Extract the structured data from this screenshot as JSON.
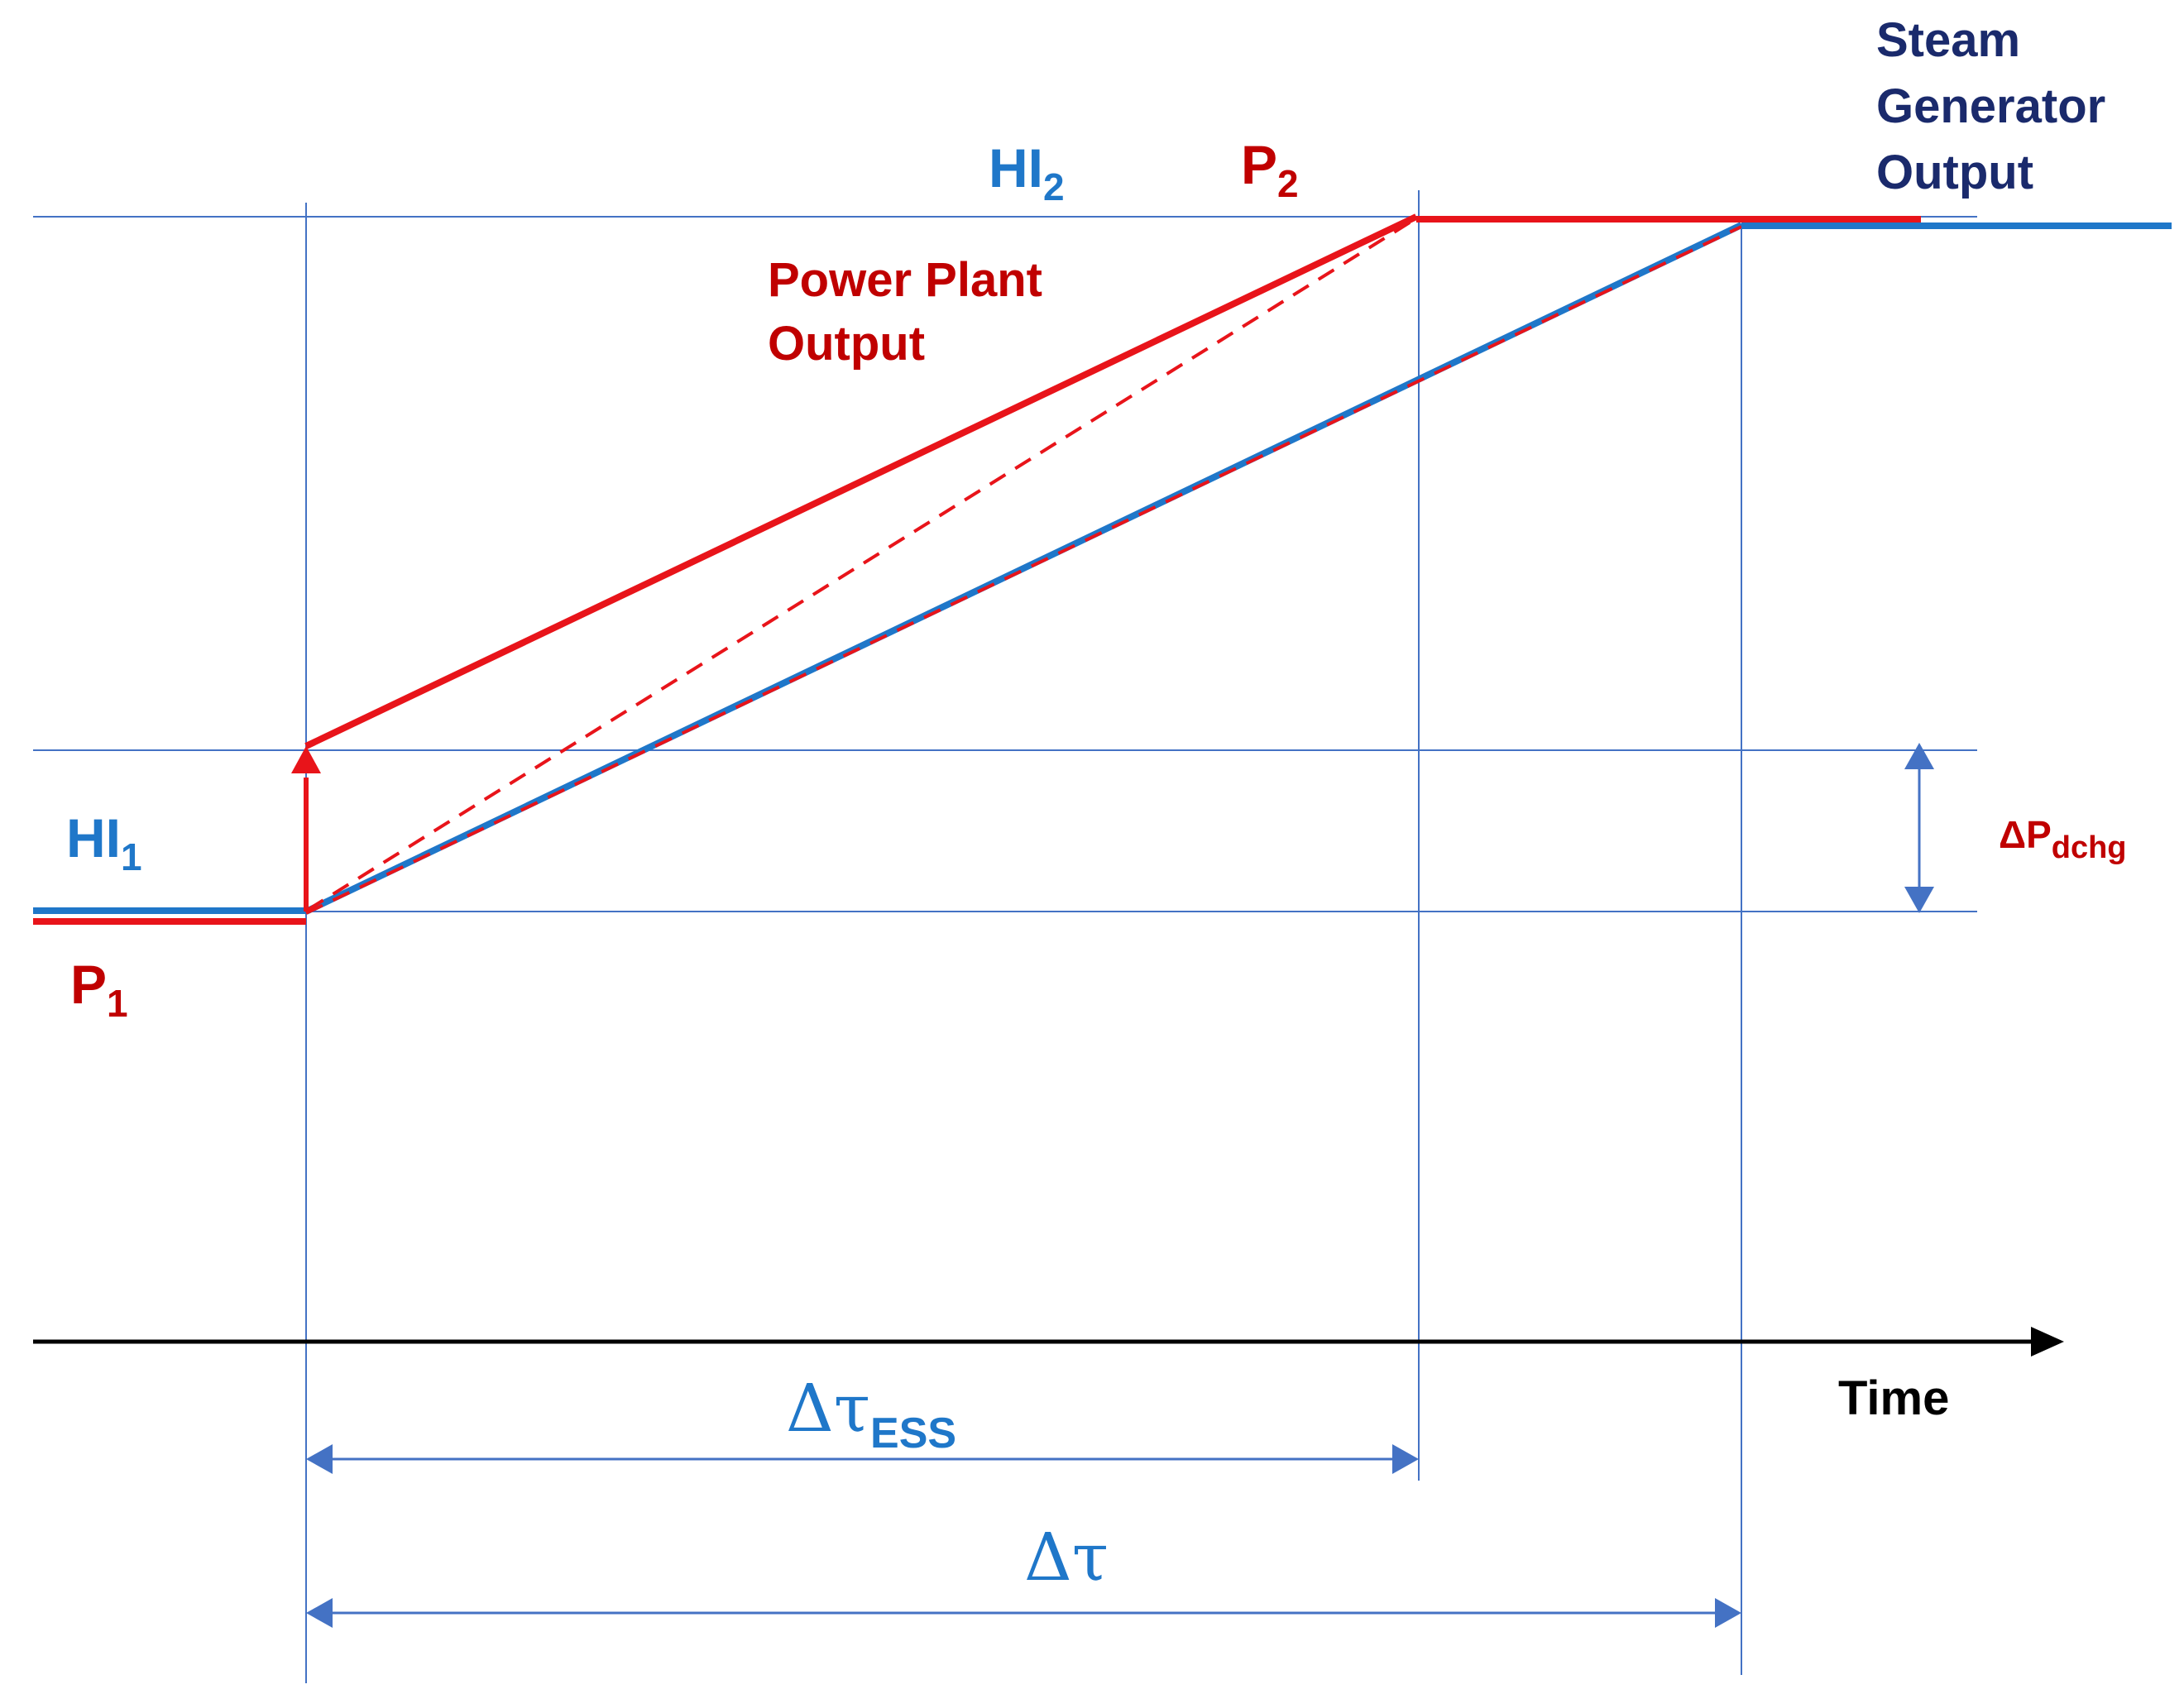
{
  "colors": {
    "hi_blue": "#1f77c9",
    "p_red": "#e8141a",
    "label_red": "#c00000",
    "guide_blue": "#4472c4",
    "dim_blue": "#4472c4",
    "steam_navy": "#1a2a6c",
    "axis_black": "#000000"
  },
  "labels": {
    "hi1_main": "HI",
    "hi1_sub": "1",
    "hi2_main": "HI",
    "hi2_sub": "2",
    "p1_main": "P",
    "p1_sub": "1",
    "p2_main": "P",
    "p2_sub": "2",
    "power_plant_line1": "Power Plant",
    "power_plant_line2": "Output",
    "steam_line1": "Steam",
    "steam_line2": "Generator",
    "steam_line3": "Output",
    "delta_p_main": "ΔP",
    "delta_p_sub": "dchg",
    "time": "Time",
    "tau_ess_main": "Δτ",
    "tau_ess_sub": "ESS",
    "tau_main": "Δτ"
  }
}
